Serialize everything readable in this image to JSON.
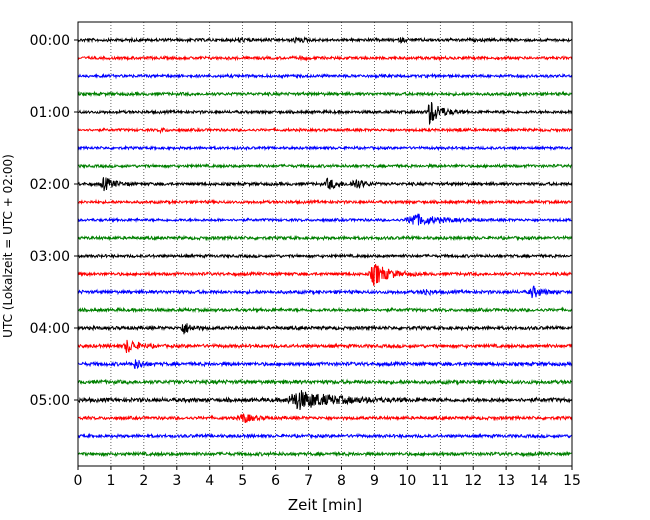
{
  "chart_data": {
    "type": "line",
    "xlabel": "Zeit  [min]",
    "ylabel": "UTC (Lokalzeit = UTC + 02:00)",
    "xlim": [
      0,
      15
    ],
    "x_ticks": [
      0,
      1,
      2,
      3,
      4,
      5,
      6,
      7,
      8,
      9,
      10,
      11,
      12,
      13,
      14,
      15
    ],
    "x_grid": true,
    "y_tick_labels": [
      "00:00",
      "01:00",
      "02:00",
      "03:00",
      "04:00",
      "05:00"
    ],
    "trace_interval_min": 15,
    "trace_count": 24,
    "trace_colors": [
      "#000000",
      "#ff0000",
      "#0000ff",
      "#008000"
    ],
    "events": [
      {
        "trace": 0,
        "time": 4.9,
        "amp": 0.2,
        "dur": 0.3
      },
      {
        "trace": 0,
        "time": 6.6,
        "amp": 0.25,
        "dur": 0.5
      },
      {
        "trace": 0,
        "time": 9.8,
        "amp": 0.18,
        "dur": 0.3
      },
      {
        "trace": 1,
        "time": 6.7,
        "amp": 0.15,
        "dur": 0.4
      },
      {
        "trace": 4,
        "time": 10.7,
        "amp": 1.2,
        "dur": 0.7
      },
      {
        "trace": 5,
        "time": 2.5,
        "amp": 0.2,
        "dur": 0.3
      },
      {
        "trace": 5,
        "time": 11.5,
        "amp": 0.2,
        "dur": 0.3
      },
      {
        "trace": 8,
        "time": 0.8,
        "amp": 0.65,
        "dur": 0.6
      },
      {
        "trace": 8,
        "time": 7.6,
        "amp": 0.6,
        "dur": 0.5
      },
      {
        "trace": 8,
        "time": 8.4,
        "amp": 0.6,
        "dur": 0.5
      },
      {
        "trace": 10,
        "time": 10.2,
        "amp": 0.6,
        "dur": 1.4
      },
      {
        "trace": 13,
        "time": 9.0,
        "amp": 1.1,
        "dur": 0.9
      },
      {
        "trace": 14,
        "time": 10.5,
        "amp": 0.35,
        "dur": 0.4
      },
      {
        "trace": 14,
        "time": 13.8,
        "amp": 0.55,
        "dur": 0.6
      },
      {
        "trace": 16,
        "time": 3.2,
        "amp": 0.6,
        "dur": 0.5
      },
      {
        "trace": 17,
        "time": 1.5,
        "amp": 0.7,
        "dur": 0.6
      },
      {
        "trace": 18,
        "time": 1.75,
        "amp": 0.45,
        "dur": 0.4
      },
      {
        "trace": 20,
        "time": 6.7,
        "amp": 0.9,
        "dur": 2.2
      },
      {
        "trace": 21,
        "time": 5.0,
        "amp": 0.5,
        "dur": 0.6
      }
    ],
    "noise_level": [
      0.14,
      0.13,
      0.13,
      0.14,
      0.13,
      0.12,
      0.12,
      0.13,
      0.14,
      0.13,
      0.12,
      0.14,
      0.13,
      0.14,
      0.15,
      0.14,
      0.15,
      0.15,
      0.16,
      0.17,
      0.18,
      0.14,
      0.14,
      0.15
    ]
  }
}
